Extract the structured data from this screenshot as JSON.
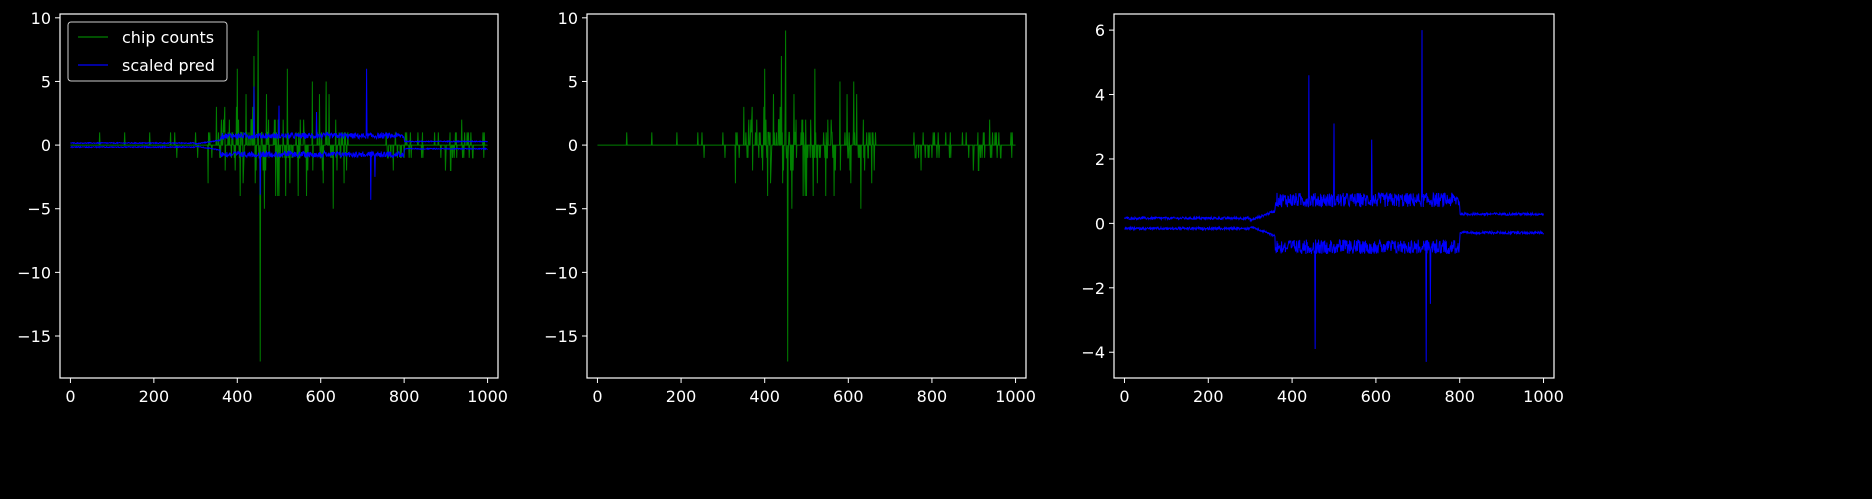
{
  "chart_data": [
    {
      "type": "line",
      "xlim": [
        -25,
        1025
      ],
      "ylim": [
        -18.3,
        10.3
      ],
      "xticks": [
        0,
        200,
        400,
        600,
        800,
        1000
      ],
      "xtick_labels": [
        "0",
        "200",
        "400",
        "600",
        "800",
        "1000"
      ],
      "yticks": [
        -15,
        -10,
        -5,
        0,
        5,
        10
      ],
      "ytick_labels": [
        "−15",
        "−10",
        "−5",
        "0",
        "5",
        "10"
      ],
      "legend": {
        "position": "upper-left",
        "entries": [
          "chip counts",
          "scaled pred"
        ]
      },
      "series": [
        {
          "name": "chip counts",
          "color": "#008000",
          "description_points": [
            [
              0,
              0
            ],
            [
              70,
              1
            ],
            [
              130,
              -1
            ],
            [
              190,
              1
            ],
            [
              250,
              -1
            ],
            [
              300,
              1
            ],
            [
              330,
              -3
            ],
            [
              360,
              3
            ],
            [
              380,
              -2
            ],
            [
              400,
              6
            ],
            [
              420,
              -3
            ],
            [
              440,
              7
            ],
            [
              450,
              9
            ],
            [
              455,
              -17
            ],
            [
              470,
              4
            ],
            [
              500,
              -4
            ],
            [
              520,
              6
            ],
            [
              550,
              -3
            ],
            [
              580,
              5
            ],
            [
              600,
              -3
            ],
            [
              620,
              4
            ],
            [
              630,
              -5
            ],
            [
              660,
              -1
            ],
            [
              680,
              0
            ],
            [
              750,
              0
            ],
            [
              760,
              2
            ],
            [
              800,
              -1
            ],
            [
              820,
              2
            ],
            [
              850,
              -1
            ],
            [
              900,
              1
            ],
            [
              950,
              -1
            ],
            [
              980,
              1
            ],
            [
              1000,
              -1
            ]
          ]
        },
        {
          "name": "scaled pred",
          "color": "#0000ff",
          "description_points": [
            [
              0,
              0.2
            ],
            [
              100,
              0.2
            ],
            [
              200,
              0.1
            ],
            [
              300,
              0.05
            ],
            [
              350,
              0.4
            ],
            [
              400,
              0.8
            ],
            [
              440,
              4.6
            ],
            [
              455,
              -3.9
            ],
            [
              500,
              3.1
            ],
            [
              590,
              2.6
            ],
            [
              600,
              1.2
            ],
            [
              710,
              6.0
            ],
            [
              720,
              -4.3
            ],
            [
              800,
              0.8
            ],
            [
              1000,
              0.3
            ]
          ]
        }
      ]
    },
    {
      "type": "line",
      "xlim": [
        -25,
        1025
      ],
      "ylim": [
        -18.3,
        10.3
      ],
      "xticks": [
        0,
        200,
        400,
        600,
        800,
        1000
      ],
      "xtick_labels": [
        "0",
        "200",
        "400",
        "600",
        "800",
        "1000"
      ],
      "yticks": [
        -15,
        -10,
        -5,
        0,
        5,
        10
      ],
      "ytick_labels": [
        "−15",
        "−10",
        "−5",
        "0",
        "5",
        "10"
      ],
      "series": [
        {
          "color": "#008000",
          "ref": "chip counts"
        }
      ]
    },
    {
      "type": "line",
      "xlim": [
        -25,
        1025
      ],
      "ylim": [
        -4.8,
        6.5
      ],
      "xticks": [
        0,
        200,
        400,
        600,
        800,
        1000
      ],
      "xtick_labels": [
        "0",
        "200",
        "400",
        "600",
        "800",
        "1000"
      ],
      "yticks": [
        -4,
        -2,
        0,
        2,
        4,
        6
      ],
      "ytick_labels": [
        "−4",
        "−2",
        "0",
        "2",
        "4",
        "6"
      ],
      "series": [
        {
          "color": "#0000ff",
          "ref": "scaled pred"
        }
      ]
    }
  ]
}
